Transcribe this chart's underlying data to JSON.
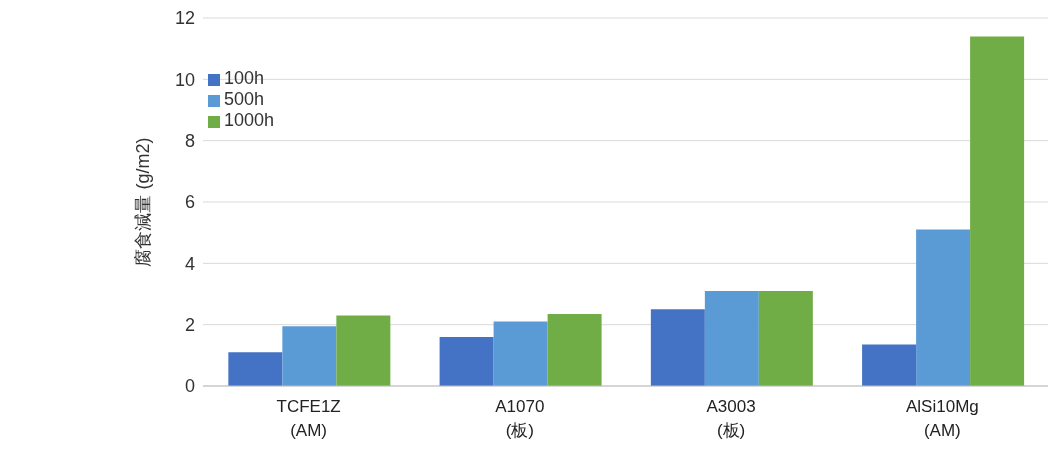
{
  "chart_data": {
    "type": "bar",
    "ylabel": "腐食減量 (g/m2)",
    "categories": [
      "TCFE1Z\n(AM)",
      "A1070\n(板)",
      "A3003\n(板)",
      "AlSi10Mg\n(AM)"
    ],
    "series": [
      {
        "name": "100h",
        "color": "#4472c4",
        "values": [
          1.1,
          1.6,
          2.5,
          1.35
        ]
      },
      {
        "name": "500h",
        "color": "#5b9bd5",
        "values": [
          1.95,
          2.1,
          3.1,
          5.1
        ]
      },
      {
        "name": "1000h",
        "color": "#70ad47",
        "values": [
          2.3,
          2.35,
          3.1,
          11.4
        ]
      }
    ],
    "ylim": [
      0,
      12
    ],
    "yticks": [
      0,
      2,
      4,
      6,
      8,
      10,
      12
    ],
    "grid": "y",
    "legend": "top left"
  }
}
